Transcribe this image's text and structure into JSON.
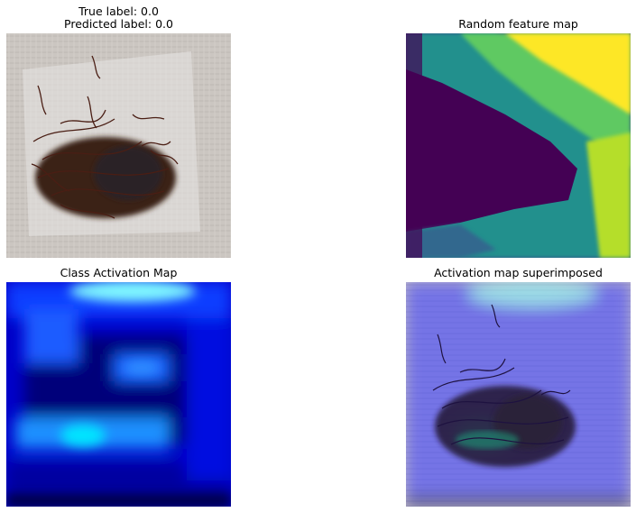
{
  "panels": [
    {
      "title_line1": "True label: 0.0",
      "title_line2": "Predicted label: 0.0",
      "image": "saffron-in-plastic-bag-photo"
    },
    {
      "title": "Random feature map",
      "image": "viridis-feature-map"
    },
    {
      "title": "Class Activation Map",
      "image": "jet-activation-heatmap"
    },
    {
      "title": "Activation map superimposed",
      "image": "photo-with-heatmap-overlay"
    }
  ]
}
